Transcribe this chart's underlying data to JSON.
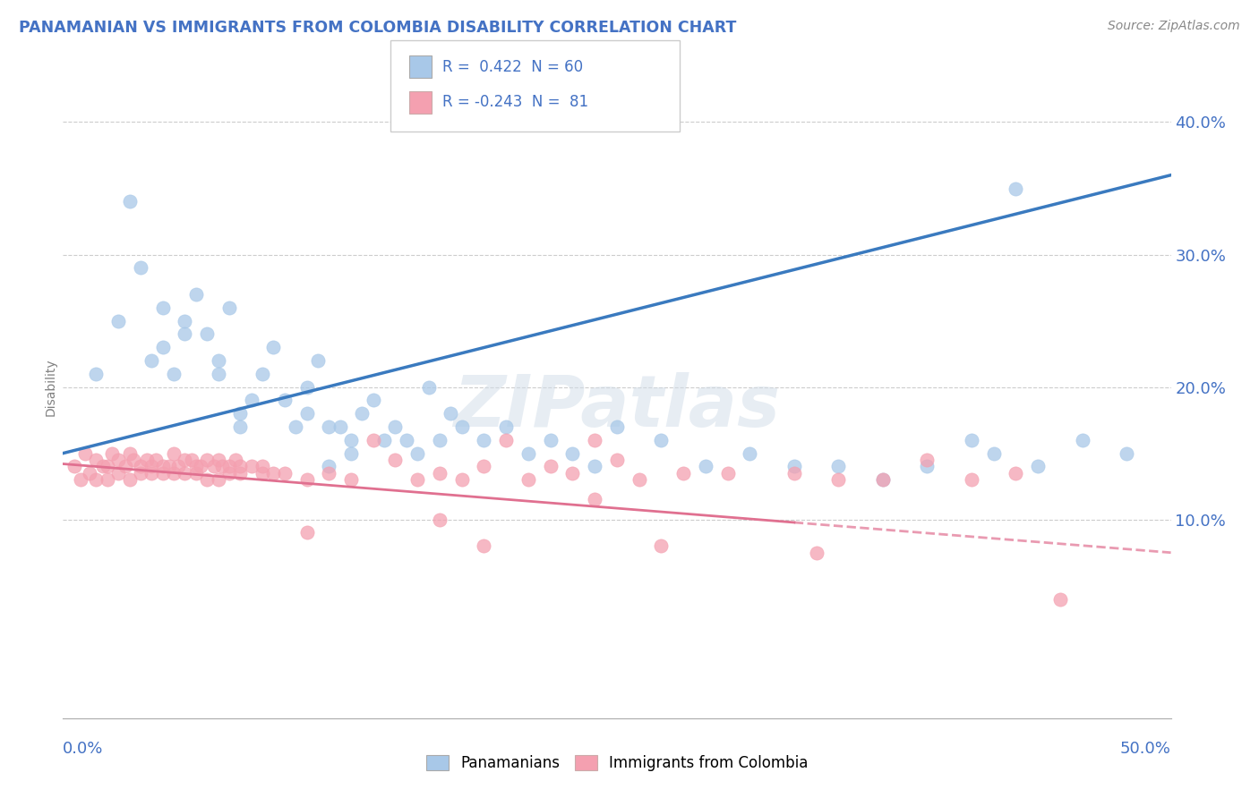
{
  "title": "PANAMANIAN VS IMMIGRANTS FROM COLOMBIA DISABILITY CORRELATION CHART",
  "source": "Source: ZipAtlas.com",
  "ylabel": "Disability",
  "xlim": [
    0.0,
    50.0
  ],
  "ylim": [
    -5.0,
    45.0
  ],
  "yticks": [
    10.0,
    20.0,
    30.0,
    40.0
  ],
  "blue_R": 0.422,
  "blue_N": 60,
  "pink_R": -0.243,
  "pink_N": 81,
  "blue_color": "#a8c8e8",
  "pink_color": "#f4a0b0",
  "blue_line_color": "#3a7abf",
  "pink_line_color": "#e07090",
  "legend_label_blue": "Panamanians",
  "legend_label_pink": "Immigrants from Colombia",
  "title_color": "#4472c4",
  "axis_color": "#4472c4",
  "grid_color": "#cccccc",
  "blue_scatter_x": [
    1.5,
    2.5,
    3.0,
    3.5,
    4.0,
    4.5,
    4.5,
    5.0,
    5.5,
    5.5,
    6.0,
    6.5,
    7.0,
    7.0,
    7.5,
    8.0,
    8.0,
    8.5,
    9.0,
    9.5,
    10.0,
    10.5,
    11.0,
    11.0,
    11.5,
    12.0,
    12.0,
    12.5,
    13.0,
    13.0,
    13.5,
    14.0,
    14.5,
    15.0,
    15.5,
    16.0,
    16.5,
    17.0,
    17.5,
    18.0,
    19.0,
    20.0,
    21.0,
    22.0,
    23.0,
    24.0,
    25.0,
    27.0,
    29.0,
    31.0,
    33.0,
    35.0,
    37.0,
    39.0,
    41.0,
    42.0,
    44.0,
    46.0,
    48.0,
    43.0
  ],
  "blue_scatter_y": [
    21.0,
    25.0,
    34.0,
    29.0,
    22.0,
    23.0,
    26.0,
    21.0,
    25.0,
    24.0,
    27.0,
    24.0,
    22.0,
    21.0,
    26.0,
    18.0,
    17.0,
    19.0,
    21.0,
    23.0,
    19.0,
    17.0,
    18.0,
    20.0,
    22.0,
    14.0,
    17.0,
    17.0,
    16.0,
    15.0,
    18.0,
    19.0,
    16.0,
    17.0,
    16.0,
    15.0,
    20.0,
    16.0,
    18.0,
    17.0,
    16.0,
    17.0,
    15.0,
    16.0,
    15.0,
    14.0,
    17.0,
    16.0,
    14.0,
    15.0,
    14.0,
    14.0,
    13.0,
    14.0,
    16.0,
    15.0,
    14.0,
    16.0,
    15.0,
    35.0
  ],
  "pink_scatter_x": [
    0.5,
    0.8,
    1.0,
    1.2,
    1.5,
    1.5,
    1.8,
    2.0,
    2.0,
    2.2,
    2.5,
    2.5,
    2.8,
    3.0,
    3.0,
    3.2,
    3.5,
    3.5,
    3.8,
    4.0,
    4.0,
    4.2,
    4.5,
    4.5,
    4.8,
    5.0,
    5.0,
    5.2,
    5.5,
    5.5,
    5.8,
    6.0,
    6.0,
    6.2,
    6.5,
    6.5,
    6.8,
    7.0,
    7.0,
    7.2,
    7.5,
    7.5,
    7.8,
    8.0,
    8.0,
    8.5,
    9.0,
    9.0,
    9.5,
    10.0,
    11.0,
    12.0,
    13.0,
    14.0,
    15.0,
    16.0,
    17.0,
    18.0,
    19.0,
    20.0,
    21.0,
    22.0,
    23.0,
    24.0,
    25.0,
    26.0,
    28.0,
    30.0,
    33.0,
    35.0,
    37.0,
    39.0,
    41.0,
    43.0,
    45.0,
    24.0,
    17.0,
    11.0,
    19.0,
    34.0,
    27.0
  ],
  "pink_scatter_y": [
    14.0,
    13.0,
    15.0,
    13.5,
    14.5,
    13.0,
    14.0,
    14.0,
    13.0,
    15.0,
    14.5,
    13.5,
    14.0,
    15.0,
    13.0,
    14.5,
    13.5,
    14.0,
    14.5,
    14.0,
    13.5,
    14.5,
    13.5,
    14.0,
    14.0,
    13.5,
    15.0,
    14.0,
    14.5,
    13.5,
    14.5,
    14.0,
    13.5,
    14.0,
    14.5,
    13.0,
    14.0,
    14.5,
    13.0,
    14.0,
    13.5,
    14.0,
    14.5,
    13.5,
    14.0,
    14.0,
    13.5,
    14.0,
    13.5,
    13.5,
    13.0,
    13.5,
    13.0,
    16.0,
    14.5,
    13.0,
    13.5,
    13.0,
    14.0,
    16.0,
    13.0,
    14.0,
    13.5,
    16.0,
    14.5,
    13.0,
    13.5,
    13.5,
    13.5,
    13.0,
    13.0,
    14.5,
    13.0,
    13.5,
    4.0,
    11.5,
    10.0,
    9.0,
    8.0,
    7.5,
    8.0
  ]
}
